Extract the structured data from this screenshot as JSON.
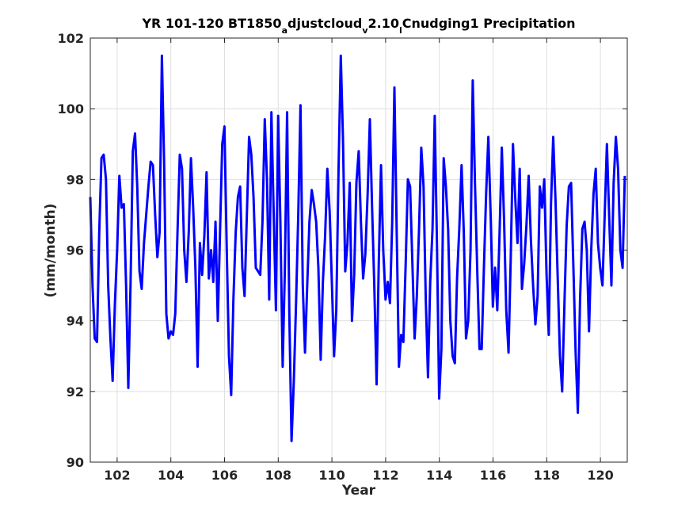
{
  "chart_data": {
    "type": "line",
    "title": {
      "parts": [
        {
          "text": "YR 101-120 BT1850",
          "sub": false
        },
        {
          "text": "a",
          "sub": true
        },
        {
          "text": "djustcloud",
          "sub": false
        },
        {
          "text": "v",
          "sub": true
        },
        {
          "text": "2.10",
          "sub": false
        },
        {
          "text": "l",
          "sub": true
        },
        {
          "text": "Cnudging1 Precipitation",
          "sub": false
        }
      ]
    },
    "xlabel": "Year",
    "ylabel": "(mm/month)",
    "xlim": [
      101,
      121
    ],
    "ylim": [
      90,
      102
    ],
    "xticks": [
      102,
      104,
      106,
      108,
      110,
      112,
      114,
      116,
      118,
      120
    ],
    "yticks": [
      90,
      92,
      94,
      96,
      98,
      100,
      102
    ],
    "grid": true,
    "series": [
      {
        "color": "#0000ff",
        "x_start": 101.0,
        "x_step": 0.0833,
        "values": [
          97.5,
          95.0,
          93.5,
          93.4,
          96.5,
          98.6,
          98.7,
          98.0,
          95.0,
          93.5,
          92.3,
          94.5,
          96.0,
          98.1,
          97.2,
          97.3,
          95.0,
          92.1,
          95.0,
          98.8,
          99.3,
          97.8,
          95.4,
          94.9,
          96.2,
          97.0,
          97.8,
          98.5,
          98.4,
          97.0,
          95.8,
          96.5,
          101.5,
          98.5,
          94.2,
          93.5,
          93.7,
          93.6,
          94.2,
          96.5,
          98.7,
          98.3,
          96.0,
          95.1,
          96.5,
          98.6,
          97.2,
          95.5,
          92.7,
          96.2,
          95.3,
          96.4,
          98.2,
          95.2,
          96.0,
          95.1,
          96.8,
          94.0,
          96.5,
          99.0,
          99.5,
          96.0,
          93.0,
          91.9,
          94.6,
          96.5,
          97.5,
          97.8,
          95.5,
          94.7,
          97.0,
          99.2,
          98.7,
          97.5,
          95.5,
          95.4,
          95.3,
          96.8,
          99.7,
          98.0,
          94.6,
          99.9,
          97.0,
          94.3,
          99.8,
          96.8,
          92.7,
          95.5,
          99.9,
          94.2,
          90.6,
          92.3,
          94.5,
          97.0,
          100.1,
          95.0,
          93.1,
          95.0,
          96.8,
          97.7,
          97.3,
          96.8,
          95.5,
          92.9,
          95.1,
          96.4,
          98.3,
          97.1,
          95.1,
          93.0,
          94.3,
          98.2,
          101.5,
          99.1,
          95.4,
          96.2,
          97.9,
          94.0,
          95.3,
          97.9,
          98.8,
          96.8,
          95.2,
          95.9,
          97.6,
          99.7,
          97.2,
          95.0,
          92.2,
          95.7,
          98.4,
          96.0,
          94.6,
          95.1,
          94.5,
          96.8,
          100.6,
          96.5,
          92.7,
          93.6,
          93.4,
          95.6,
          98.0,
          97.8,
          95.7,
          93.5,
          94.7,
          96.6,
          98.9,
          97.8,
          94.6,
          92.4,
          95.1,
          96.6,
          99.8,
          96.2,
          91.8,
          93.2,
          98.6,
          97.8,
          96.6,
          94.0,
          93.0,
          92.8,
          95.2,
          96.6,
          98.4,
          96.5,
          93.5,
          94.0,
          96.0,
          100.8,
          97.9,
          95.5,
          93.2,
          93.2,
          95.5,
          97.6,
          99.2,
          97.0,
          94.4,
          95.5,
          94.3,
          96.5,
          98.9,
          96.9,
          94.3,
          93.1,
          95.8,
          99.0,
          97.5,
          96.2,
          98.3,
          94.9,
          95.6,
          96.7,
          98.1,
          96.3,
          95.0,
          93.9,
          94.7,
          97.8,
          97.2,
          98.0,
          95.3,
          93.6,
          97.3,
          99.2,
          97.4,
          95.2,
          93.0,
          92.0,
          94.5,
          96.7,
          97.8,
          97.9,
          95.5,
          93.1,
          91.4,
          94.6,
          96.6,
          96.8,
          96.0,
          93.7,
          96.0,
          97.6,
          98.3,
          96.2,
          95.5,
          95.0,
          97.0,
          99.0,
          97.0,
          95.0,
          97.9,
          99.2,
          98.3,
          96.0,
          95.5,
          98.1
        ]
      }
    ]
  }
}
